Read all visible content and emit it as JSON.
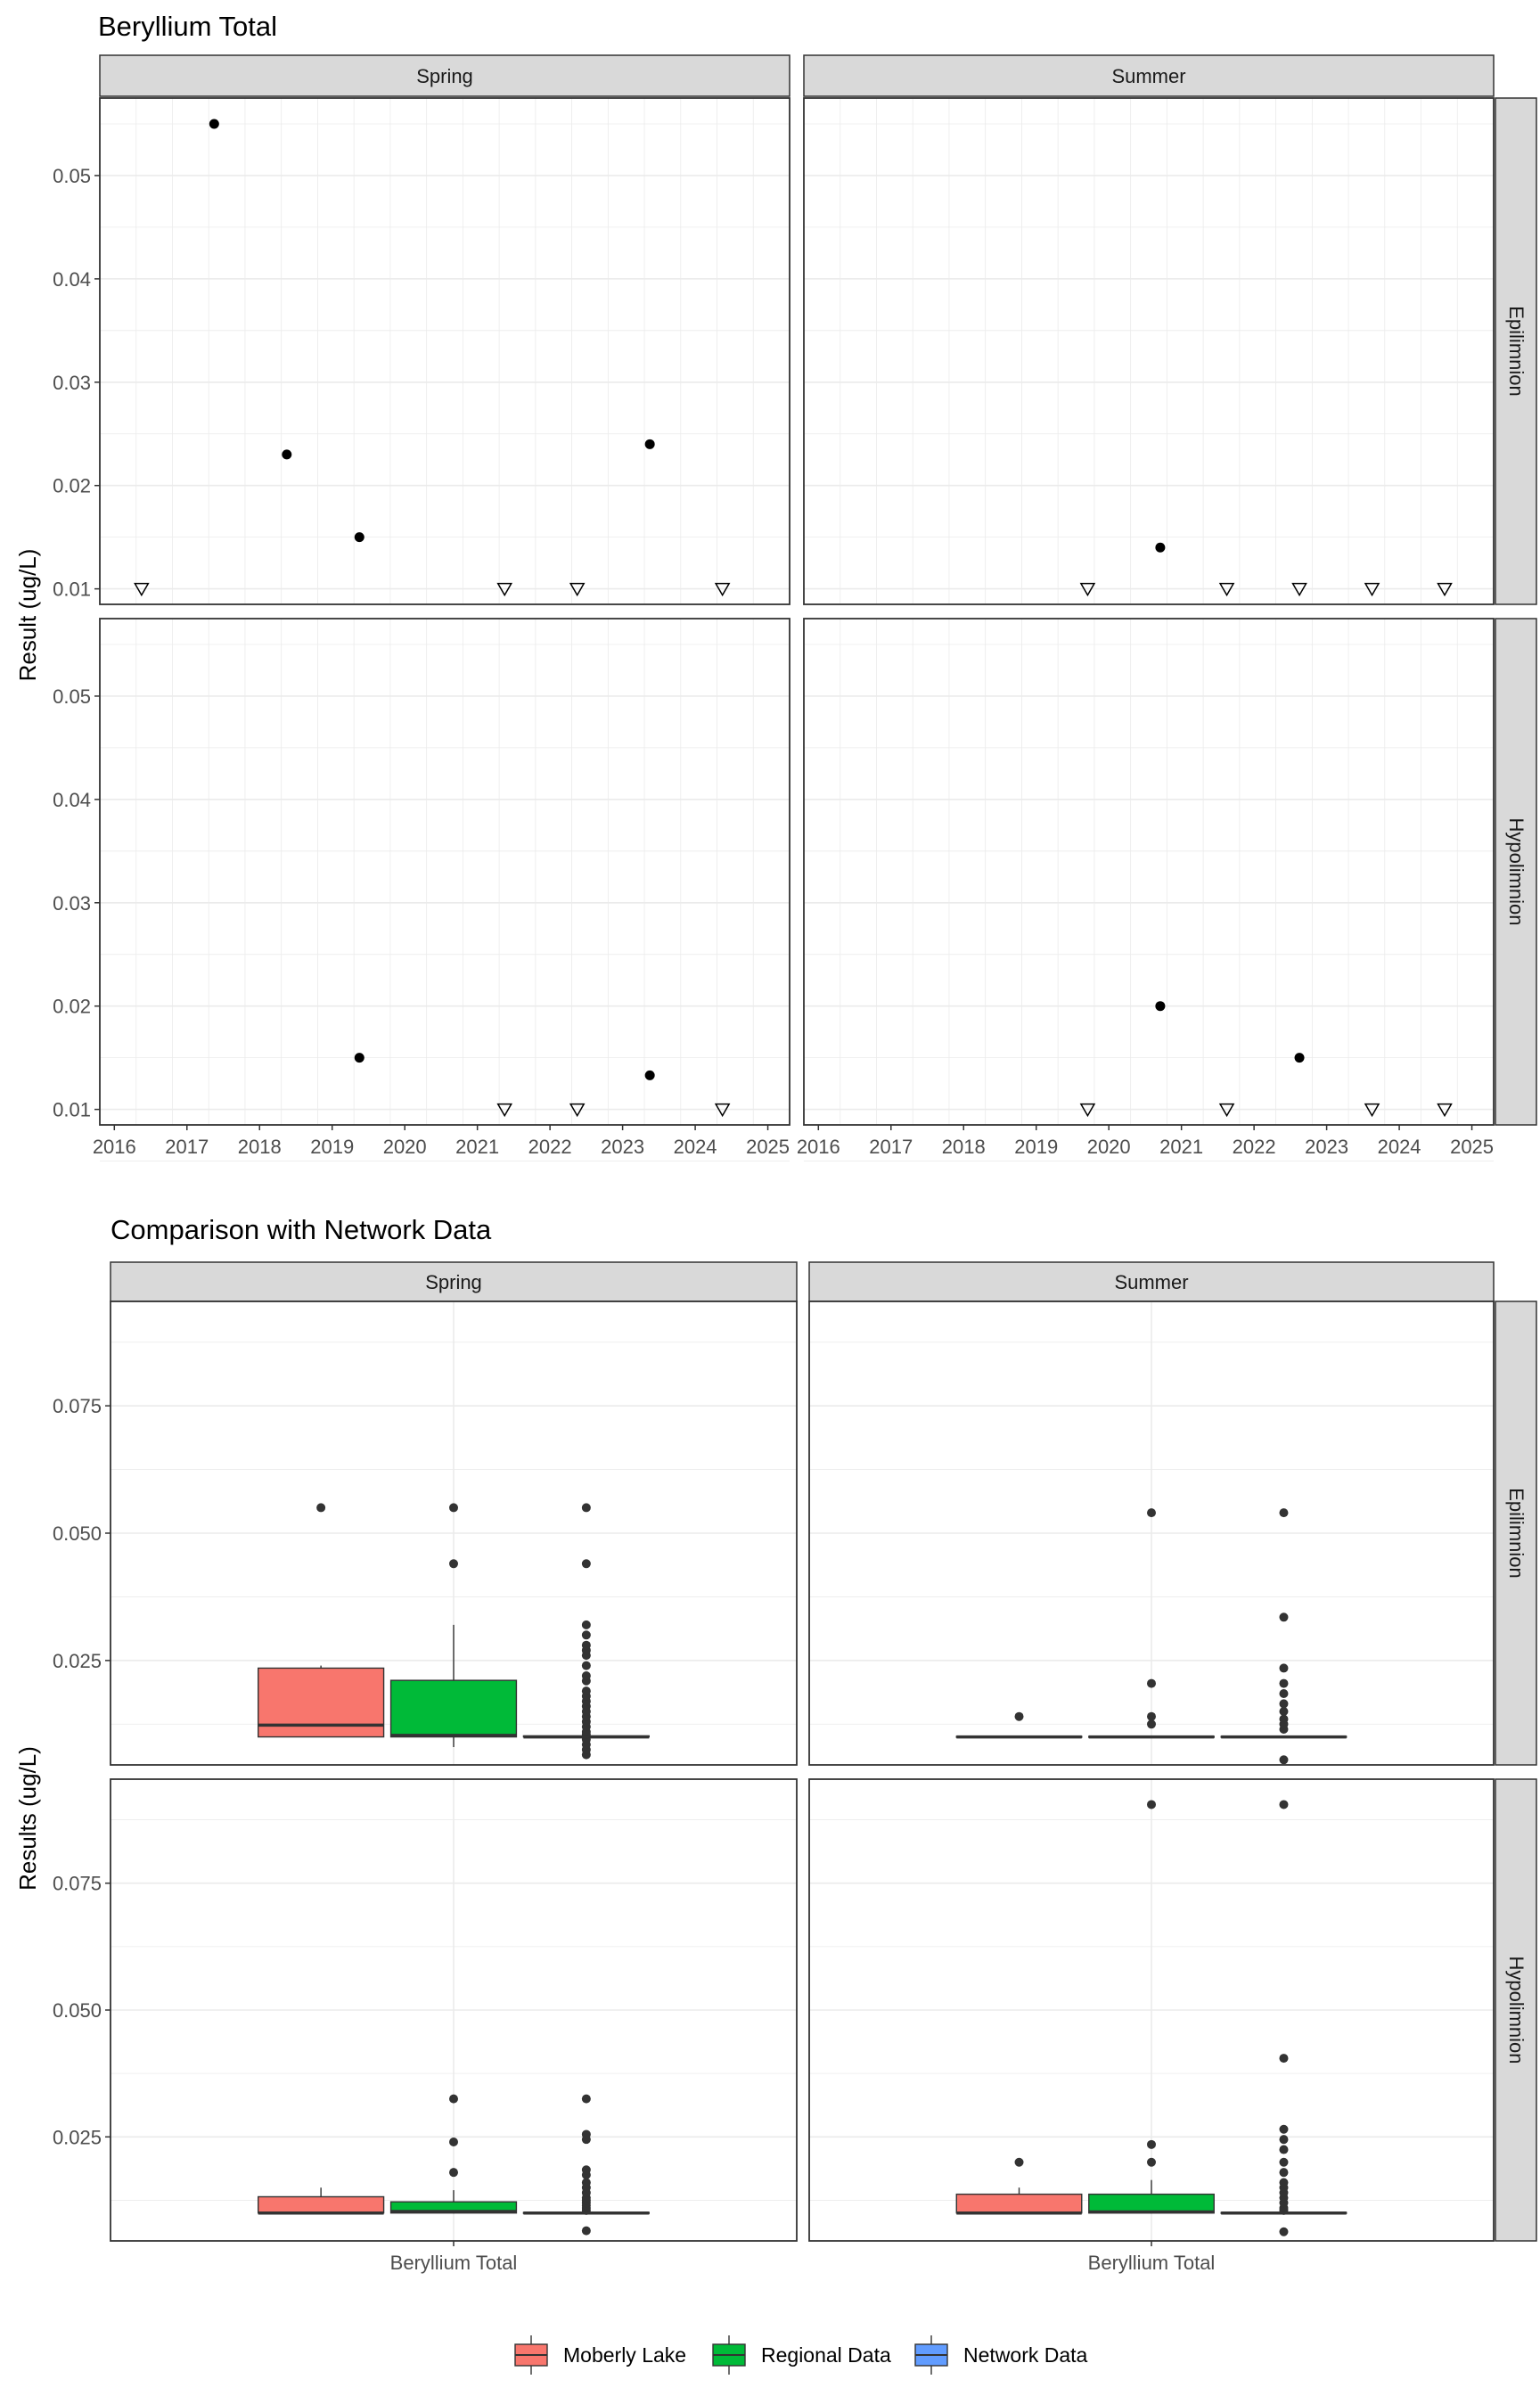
{
  "colors": {
    "moberly": "#F8766D",
    "regional": "#00BA38",
    "network": "#619CFF",
    "strip_bg": "#D9D9D9",
    "grid": "#EBEBEB",
    "point": "#000000",
    "box_point": "#333333"
  },
  "legend": [
    "Moberly Lake",
    "Regional Data",
    "Network Data"
  ],
  "chart_data": [
    {
      "type": "scatter",
      "title": "Beryllium Total",
      "xlabel": "",
      "ylabel": "Result (ug/L)",
      "xlim": [
        2015.8,
        2025.3
      ],
      "ylim": [
        0.0085,
        0.0575
      ],
      "xticks": [
        "2016",
        "2017",
        "2018",
        "2019",
        "2020",
        "2021",
        "2022",
        "2023",
        "2024",
        "2025"
      ],
      "yticks": [
        "0.01",
        "0.02",
        "0.03",
        "0.04",
        "0.05"
      ],
      "columns": [
        "Spring",
        "Summer"
      ],
      "rows": [
        "Epilimnion",
        "Hypolimnion"
      ],
      "marker_legend": {
        "detected": "filled circle",
        "below_detection": "open triangle"
      },
      "panels": [
        {
          "column": "Spring",
          "row": "Epilimnion",
          "points": [
            {
              "x": "2016-05",
              "y": 0.01,
              "detected": false
            },
            {
              "x": "2017-05",
              "y": 0.055,
              "detected": true
            },
            {
              "x": "2018-05",
              "y": 0.023,
              "detected": true
            },
            {
              "x": "2019-05",
              "y": 0.015,
              "detected": true
            },
            {
              "x": "2021-05",
              "y": 0.01,
              "detected": false
            },
            {
              "x": "2022-05",
              "y": 0.01,
              "detected": false
            },
            {
              "x": "2023-05",
              "y": 0.024,
              "detected": true
            },
            {
              "x": "2024-05",
              "y": 0.01,
              "detected": false
            }
          ]
        },
        {
          "column": "Summer",
          "row": "Epilimnion",
          "points": [
            {
              "x": "2019-09",
              "y": 0.01,
              "detected": false
            },
            {
              "x": "2020-09",
              "y": 0.014,
              "detected": true
            },
            {
              "x": "2021-08",
              "y": 0.01,
              "detected": false
            },
            {
              "x": "2022-08",
              "y": 0.01,
              "detected": false
            },
            {
              "x": "2023-08",
              "y": 0.01,
              "detected": false
            },
            {
              "x": "2024-08",
              "y": 0.01,
              "detected": false
            }
          ]
        },
        {
          "column": "Spring",
          "row": "Hypolimnion",
          "points": [
            {
              "x": "2019-05",
              "y": 0.015,
              "detected": true
            },
            {
              "x": "2021-05",
              "y": 0.01,
              "detected": false
            },
            {
              "x": "2022-05",
              "y": 0.01,
              "detected": false
            },
            {
              "x": "2023-05",
              "y": 0.0133,
              "detected": true
            },
            {
              "x": "2024-05",
              "y": 0.01,
              "detected": false
            }
          ]
        },
        {
          "column": "Summer",
          "row": "Hypolimnion",
          "points": [
            {
              "x": "2019-09",
              "y": 0.01,
              "detected": false
            },
            {
              "x": "2020-09",
              "y": 0.02,
              "detected": true
            },
            {
              "x": "2021-08",
              "y": 0.01,
              "detected": false
            },
            {
              "x": "2022-08",
              "y": 0.015,
              "detected": true
            },
            {
              "x": "2023-08",
              "y": 0.01,
              "detected": false
            },
            {
              "x": "2024-08",
              "y": 0.01,
              "detected": false
            }
          ]
        }
      ]
    },
    {
      "type": "box",
      "title": "Comparison with Network Data",
      "xlabel": "",
      "ylabel": "Results (ug/L)",
      "categories": [
        "Beryllium Total"
      ],
      "ylim": [
        0.0045,
        0.0955
      ],
      "yticks": [
        "0.025",
        "0.050",
        "0.075"
      ],
      "columns": [
        "Spring",
        "Summer"
      ],
      "rows": [
        "Epilimnion",
        "Hypolimnion"
      ],
      "series": [
        "Moberly Lake",
        "Regional Data",
        "Network Data"
      ],
      "panels": [
        {
          "column": "Spring",
          "row": "Epilimnion",
          "boxes": [
            {
              "series": "Moberly Lake",
              "q1": 0.01,
              "median": 0.0123,
              "q3": 0.0235,
              "whisker_low": 0.01,
              "whisker_high": 0.024,
              "outliers": [
                0.055
              ]
            },
            {
              "series": "Regional Data",
              "q1": 0.01,
              "median": 0.0103,
              "q3": 0.0211,
              "whisker_low": 0.008,
              "whisker_high": 0.032,
              "outliers": [
                0.044,
                0.055
              ]
            },
            {
              "series": "Network Data",
              "q1": 0.01,
              "median": 0.01,
              "q3": 0.0102,
              "whisker_low": 0.0099,
              "whisker_high": 0.0103,
              "outliers": [
                0.0065,
                0.0075,
                0.0085,
                0.0095,
                0.0105,
                0.011,
                0.012,
                0.013,
                0.014,
                0.015,
                0.016,
                0.017,
                0.018,
                0.019,
                0.021,
                0.022,
                0.024,
                0.026,
                0.027,
                0.028,
                0.03,
                0.032,
                0.044,
                0.055
              ]
            }
          ]
        },
        {
          "column": "Summer",
          "row": "Epilimnion",
          "boxes": [
            {
              "series": "Moberly Lake",
              "q1": 0.01,
              "median": 0.01,
              "q3": 0.0101,
              "whisker_low": 0.0099,
              "whisker_high": 0.0102,
              "outliers": [
                0.014
              ]
            },
            {
              "series": "Regional Data",
              "q1": 0.01,
              "median": 0.01,
              "q3": 0.0101,
              "whisker_low": 0.0099,
              "whisker_high": 0.0102,
              "outliers": [
                0.0125,
                0.014,
                0.0205,
                0.054
              ]
            },
            {
              "series": "Network Data",
              "q1": 0.01,
              "median": 0.01,
              "q3": 0.0101,
              "whisker_low": 0.0099,
              "whisker_high": 0.0102,
              "outliers": [
                0.0055,
                0.0115,
                0.0125,
                0.0135,
                0.015,
                0.0165,
                0.0185,
                0.0205,
                0.0235,
                0.0335,
                0.054
              ]
            }
          ]
        },
        {
          "column": "Spring",
          "row": "Hypolimnion",
          "boxes": [
            {
              "series": "Moberly Lake",
              "q1": 0.01,
              "median": 0.01,
              "q3": 0.0132,
              "whisker_low": 0.01,
              "whisker_high": 0.015,
              "outliers": []
            },
            {
              "series": "Regional Data",
              "q1": 0.01,
              "median": 0.0103,
              "q3": 0.0122,
              "whisker_low": 0.0099,
              "whisker_high": 0.0145,
              "outliers": [
                0.018,
                0.024,
                0.0325
              ]
            },
            {
              "series": "Network Data",
              "q1": 0.01,
              "median": 0.01,
              "q3": 0.0101,
              "whisker_low": 0.0099,
              "whisker_high": 0.0102,
              "outliers": [
                0.0065,
                0.0105,
                0.011,
                0.0115,
                0.012,
                0.0125,
                0.013,
                0.014,
                0.015,
                0.016,
                0.0175,
                0.0185,
                0.0245,
                0.0255,
                0.0325
              ]
            }
          ]
        },
        {
          "column": "Summer",
          "row": "Hypolimnion",
          "boxes": [
            {
              "series": "Moberly Lake",
              "q1": 0.01,
              "median": 0.01,
              "q3": 0.0137,
              "whisker_low": 0.01,
              "whisker_high": 0.015,
              "outliers": [
                0.02
              ]
            },
            {
              "series": "Regional Data",
              "q1": 0.01,
              "median": 0.0102,
              "q3": 0.0137,
              "whisker_low": 0.0099,
              "whisker_high": 0.0165,
              "outliers": [
                0.02,
                0.0235,
                0.0905
              ]
            },
            {
              "series": "Network Data",
              "q1": 0.01,
              "median": 0.01,
              "q3": 0.0101,
              "whisker_low": 0.0099,
              "whisker_high": 0.0102,
              "outliers": [
                0.0063,
                0.0105,
                0.011,
                0.012,
                0.013,
                0.014,
                0.015,
                0.016,
                0.018,
                0.02,
                0.0225,
                0.0245,
                0.0265,
                0.0405,
                0.0905
              ]
            }
          ]
        }
      ]
    }
  ]
}
